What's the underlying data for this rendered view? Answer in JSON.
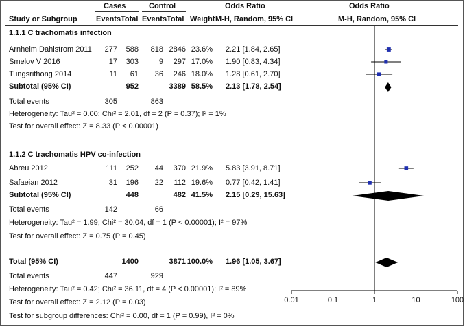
{
  "header": {
    "group1": "Cases",
    "group2": "Control",
    "col_odds_ratio": "Odds Ratio",
    "plot_title": "Odds Ratio",
    "col_study": "Study or Subgroup",
    "col_events1": "Events",
    "col_total1": "Total",
    "col_events2": "Events",
    "col_total2": "Total",
    "col_weight": "Weight",
    "col_method": "M-H, Random, 95% CI",
    "plot_method": "M-H, Random, 95% CI"
  },
  "groups": [
    {
      "title": "1.1.1 C trachomatis infection",
      "studies": [
        {
          "name": "Arnheim Dahlstrom 2011",
          "e1": "277",
          "n1": "588",
          "e2": "818",
          "n2": "2846",
          "weight": "23.6%",
          "ci": "2.21 [1.84, 2.65]"
        },
        {
          "name": "Smelov V 2016",
          "e1": "17",
          "n1": "303",
          "e2": "9",
          "n2": "297",
          "weight": "17.0%",
          "ci": "1.90 [0.83, 4.34]"
        },
        {
          "name": "Tungsrithong 2014",
          "e1": "11",
          "n1": "61",
          "e2": "36",
          "n2": "246",
          "weight": "18.0%",
          "ci": "1.28 [0.61, 2.70]"
        }
      ],
      "subtotal": {
        "label": "Subtotal (95% CI)",
        "n1": "952",
        "n2": "3389",
        "weight": "58.5%",
        "ci": "2.13 [1.78, 2.54]"
      },
      "total_events": {
        "label": "Total events",
        "e1": "305",
        "e2": "863"
      },
      "heterogeneity": "Heterogeneity: Tau² = 0.00; Chi² = 2.01, df = 2 (P = 0.37); I² = 1%",
      "overall": "Test for overall effect: Z = 8.33 (P < 0.00001)"
    },
    {
      "title": "1.1.2 C trachomatis HPV co-infection",
      "studies": [
        {
          "name": "Abreu 2012",
          "e1": "111",
          "n1": "252",
          "e2": "44",
          "n2": "370",
          "weight": "21.9%",
          "ci": "5.83 [3.91, 8.71]"
        },
        {
          "name": "Safaeian 2012",
          "e1": "31",
          "n1": "196",
          "e2": "22",
          "n2": "112",
          "weight": "19.6%",
          "ci": "0.77 [0.42, 1.41]"
        }
      ],
      "subtotal": {
        "label": "Subtotal (95% CI)",
        "n1": "448",
        "n2": "482",
        "weight": "41.5%",
        "ci": "2.15 [0.29, 15.63]"
      },
      "total_events": {
        "label": "Total events",
        "e1": "142",
        "e2": "66"
      },
      "heterogeneity": "Heterogeneity: Tau² = 1.99; Chi² = 30.04, df = 1 (P < 0.00001); I² = 97%",
      "overall": "Test for overall effect: Z = 0.75 (P = 0.45)"
    }
  ],
  "total": {
    "label": "Total (95% CI)",
    "n1": "1400",
    "n2": "3871",
    "weight": "100.0%",
    "ci": "1.96 [1.05, 3.67]",
    "total_events": {
      "label": "Total events",
      "e1": "447",
      "e2": "929"
    },
    "heterogeneity": "Heterogeneity: Tau² = 0.42; Chi² = 36.11, df = 4 (P < 0.00001); I² = 89%",
    "overall": "Test for overall effect: Z = 2.12 (P = 0.03)",
    "subgroup_diff": "Test for subgroup differences: Chi² = 0.00, df = 1 (P = 0.99), I² = 0%"
  },
  "chart_data": {
    "type": "forest",
    "x_scale": "log",
    "xlim": [
      0.01,
      100
    ],
    "x_ticks": [
      0.01,
      0.1,
      1,
      10,
      100
    ],
    "x_tick_labels": [
      "0.01",
      "0.1",
      "1",
      "10",
      "100"
    ],
    "x_label": "",
    "title": "Odds Ratio",
    "subtitle": "M-H, Random, 95% CI",
    "studies": [
      {
        "name": "Arnheim Dahlstrom 2011",
        "or": 2.21,
        "lo": 1.84,
        "hi": 2.65,
        "weight": 23.6
      },
      {
        "name": "Smelov V 2016",
        "or": 1.9,
        "lo": 0.83,
        "hi": 4.34,
        "weight": 17.0
      },
      {
        "name": "Tungsrithong 2014",
        "or": 1.28,
        "lo": 0.61,
        "hi": 2.7,
        "weight": 18.0
      },
      {
        "name": "Abreu 2012",
        "or": 5.83,
        "lo": 3.91,
        "hi": 8.71,
        "weight": 21.9
      },
      {
        "name": "Safaeian 2012",
        "or": 0.77,
        "lo": 0.42,
        "hi": 1.41,
        "weight": 19.6
      }
    ],
    "diamonds": [
      {
        "name": "Subtotal 1.1.1",
        "or": 2.13,
        "lo": 1.78,
        "hi": 2.54
      },
      {
        "name": "Subtotal 1.1.2",
        "or": 2.15,
        "lo": 0.29,
        "hi": 15.63
      },
      {
        "name": "Total",
        "or": 1.96,
        "lo": 1.05,
        "hi": 3.67
      }
    ],
    "colors": {
      "square": "#1f2fb0",
      "diamond": "#000000",
      "line": "#000000"
    }
  }
}
